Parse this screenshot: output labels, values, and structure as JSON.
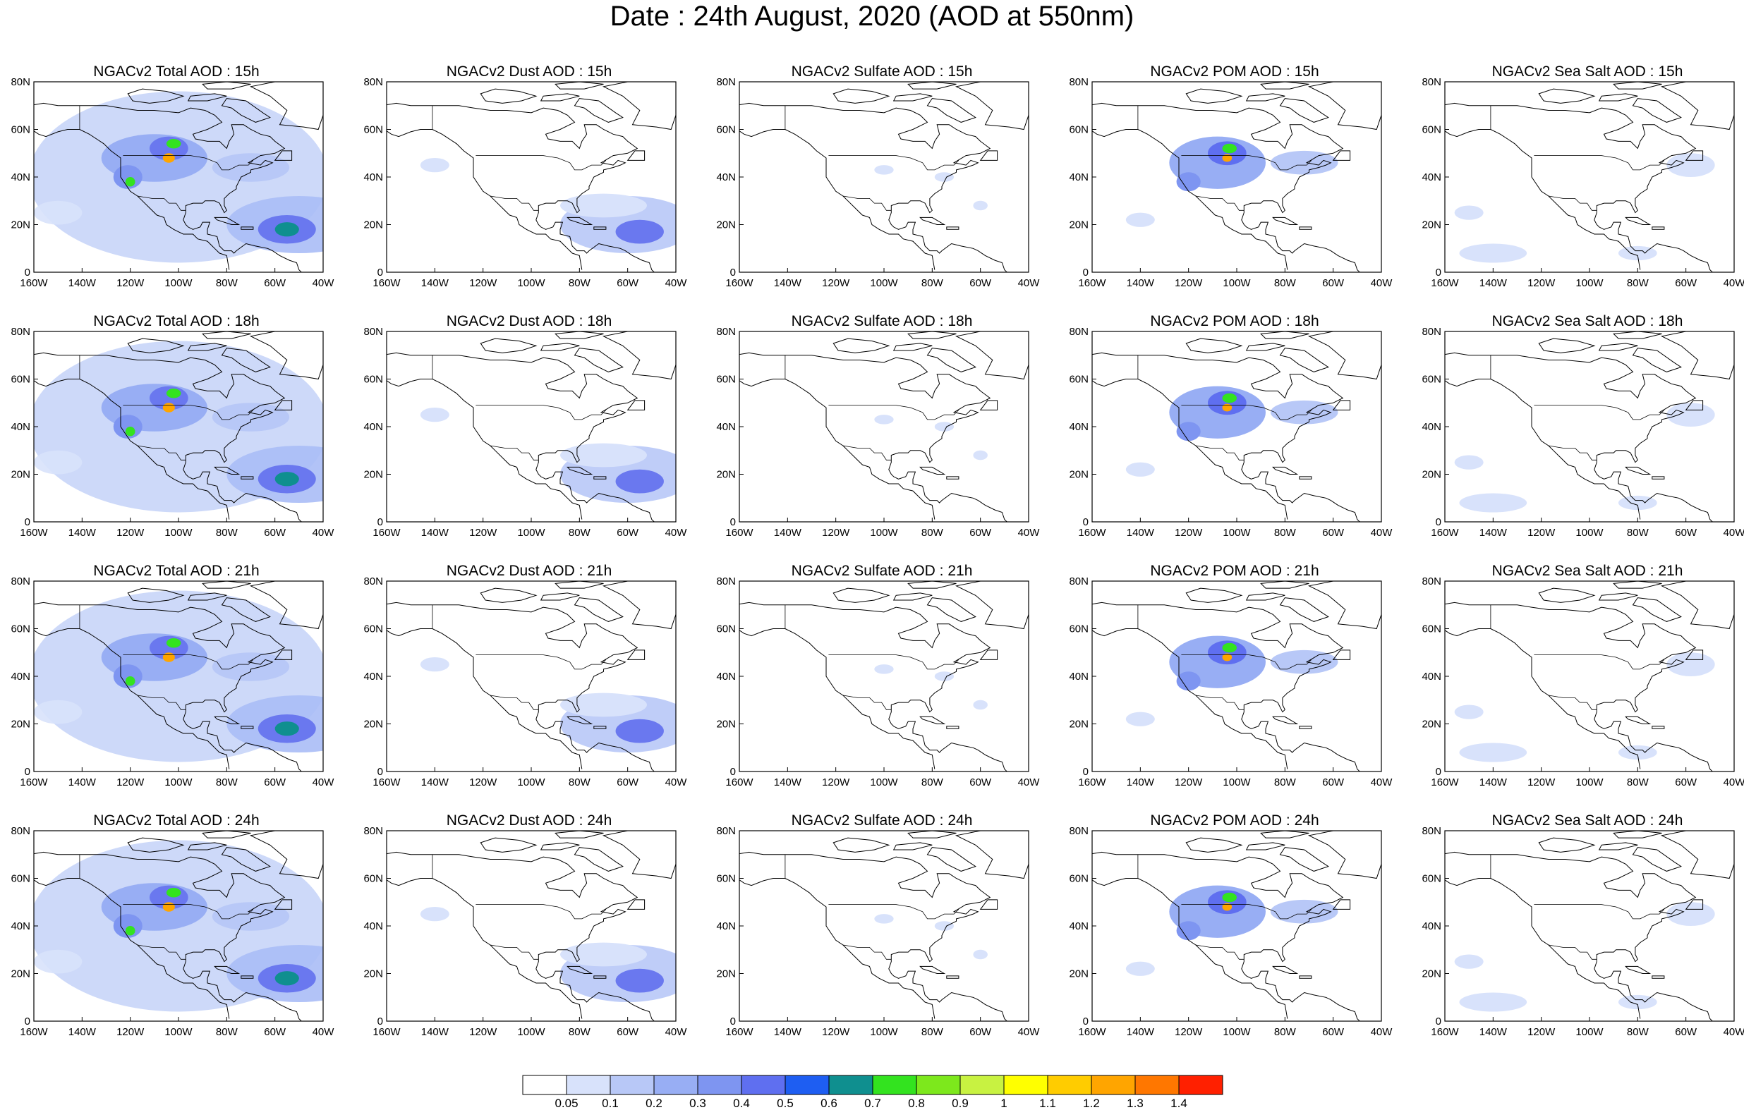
{
  "title": "Date : 24th August, 2020 (AOD at 550nm)",
  "x_ticks": [
    "160W",
    "140W",
    "120W",
    "100W",
    "80W",
    "60W",
    "40W"
  ],
  "y_ticks": [
    "0",
    "20N",
    "40N",
    "60N",
    "80N"
  ],
  "panels": [
    [
      "NGACv2 Total AOD : 15h",
      "NGACv2 Dust AOD : 15h",
      "NGACv2 Sulfate AOD : 15h",
      "NGACv2 POM AOD : 15h",
      "NGACv2 Sea Salt AOD : 15h"
    ],
    [
      "NGACv2 Total AOD : 18h",
      "NGACv2 Dust AOD : 18h",
      "NGACv2 Sulfate AOD : 18h",
      "NGACv2 POM AOD : 18h",
      "NGACv2 Sea Salt AOD : 18h"
    ],
    [
      "NGACv2 Total AOD : 21h",
      "NGACv2 Dust AOD : 21h",
      "NGACv2 Sulfate AOD : 21h",
      "NGACv2 POM AOD : 21h",
      "NGACv2 Sea Salt AOD : 21h"
    ],
    [
      "NGACv2 Total AOD : 24h",
      "NGACv2 Dust AOD : 24h",
      "NGACv2 Sulfate AOD : 24h",
      "NGACv2 POM AOD : 24h",
      "NGACv2 Sea Salt  AOD : 24h"
    ]
  ],
  "colorbar": {
    "labels": [
      "0.05",
      "0.1",
      "0.2",
      "0.3",
      "0.4",
      "0.5",
      "0.6",
      "0.7",
      "0.8",
      "0.9",
      "1",
      "1.1",
      "1.2",
      "1.3",
      "1.4"
    ],
    "colors": [
      "#ffffff",
      "#d8e2fb",
      "#b8c8f7",
      "#98aef4",
      "#7e95f1",
      "#5f6ff0",
      "#1e5ef2",
      "#0f8f8f",
      "#33e31f",
      "#7de81c",
      "#c8f241",
      "#ffff00",
      "#ffcc00",
      "#ffa500",
      "#ff7700",
      "#ff2000"
    ]
  }
}
